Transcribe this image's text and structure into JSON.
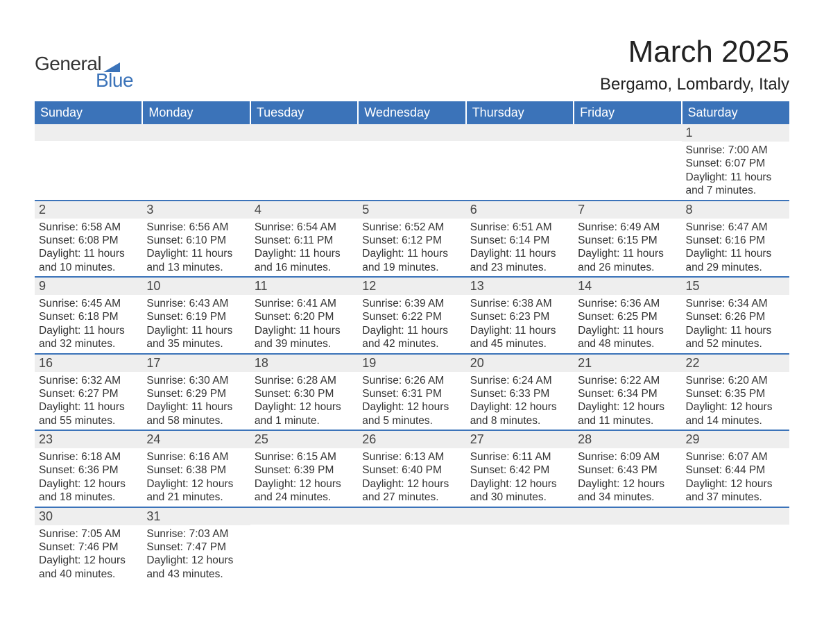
{
  "logo": {
    "text1": "General",
    "text2": "Blue",
    "tri_color": "#3b73b9"
  },
  "title": {
    "main": "March 2025",
    "sub": "Bergamo, Lombardy, Italy"
  },
  "colors": {
    "header_bg": "#3b73b9",
    "header_text": "#ffffff",
    "row_divider": "#3b73b9",
    "daynum_bg": "#eeeeee",
    "body_text": "#333333",
    "page_bg": "#ffffff"
  },
  "typography": {
    "title_fontsize": 44,
    "subtitle_fontsize": 24,
    "header_fontsize": 18,
    "daynum_fontsize": 18,
    "body_fontsize": 15.5,
    "font_family": "Arial"
  },
  "weekdays": [
    "Sunday",
    "Monday",
    "Tuesday",
    "Wednesday",
    "Thursday",
    "Friday",
    "Saturday"
  ],
  "grid": {
    "type": "calendar",
    "rows": 6,
    "cols": 7,
    "first_day_col": 6,
    "days_in_month": 31
  },
  "days": {
    "1": {
      "sunrise": "Sunrise: 7:00 AM",
      "sunset": "Sunset: 6:07 PM",
      "daylight": "Daylight: 11 hours and 7 minutes."
    },
    "2": {
      "sunrise": "Sunrise: 6:58 AM",
      "sunset": "Sunset: 6:08 PM",
      "daylight": "Daylight: 11 hours and 10 minutes."
    },
    "3": {
      "sunrise": "Sunrise: 6:56 AM",
      "sunset": "Sunset: 6:10 PM",
      "daylight": "Daylight: 11 hours and 13 minutes."
    },
    "4": {
      "sunrise": "Sunrise: 6:54 AM",
      "sunset": "Sunset: 6:11 PM",
      "daylight": "Daylight: 11 hours and 16 minutes."
    },
    "5": {
      "sunrise": "Sunrise: 6:52 AM",
      "sunset": "Sunset: 6:12 PM",
      "daylight": "Daylight: 11 hours and 19 minutes."
    },
    "6": {
      "sunrise": "Sunrise: 6:51 AM",
      "sunset": "Sunset: 6:14 PM",
      "daylight": "Daylight: 11 hours and 23 minutes."
    },
    "7": {
      "sunrise": "Sunrise: 6:49 AM",
      "sunset": "Sunset: 6:15 PM",
      "daylight": "Daylight: 11 hours and 26 minutes."
    },
    "8": {
      "sunrise": "Sunrise: 6:47 AM",
      "sunset": "Sunset: 6:16 PM",
      "daylight": "Daylight: 11 hours and 29 minutes."
    },
    "9": {
      "sunrise": "Sunrise: 6:45 AM",
      "sunset": "Sunset: 6:18 PM",
      "daylight": "Daylight: 11 hours and 32 minutes."
    },
    "10": {
      "sunrise": "Sunrise: 6:43 AM",
      "sunset": "Sunset: 6:19 PM",
      "daylight": "Daylight: 11 hours and 35 minutes."
    },
    "11": {
      "sunrise": "Sunrise: 6:41 AM",
      "sunset": "Sunset: 6:20 PM",
      "daylight": "Daylight: 11 hours and 39 minutes."
    },
    "12": {
      "sunrise": "Sunrise: 6:39 AM",
      "sunset": "Sunset: 6:22 PM",
      "daylight": "Daylight: 11 hours and 42 minutes."
    },
    "13": {
      "sunrise": "Sunrise: 6:38 AM",
      "sunset": "Sunset: 6:23 PM",
      "daylight": "Daylight: 11 hours and 45 minutes."
    },
    "14": {
      "sunrise": "Sunrise: 6:36 AM",
      "sunset": "Sunset: 6:25 PM",
      "daylight": "Daylight: 11 hours and 48 minutes."
    },
    "15": {
      "sunrise": "Sunrise: 6:34 AM",
      "sunset": "Sunset: 6:26 PM",
      "daylight": "Daylight: 11 hours and 52 minutes."
    },
    "16": {
      "sunrise": "Sunrise: 6:32 AM",
      "sunset": "Sunset: 6:27 PM",
      "daylight": "Daylight: 11 hours and 55 minutes."
    },
    "17": {
      "sunrise": "Sunrise: 6:30 AM",
      "sunset": "Sunset: 6:29 PM",
      "daylight": "Daylight: 11 hours and 58 minutes."
    },
    "18": {
      "sunrise": "Sunrise: 6:28 AM",
      "sunset": "Sunset: 6:30 PM",
      "daylight": "Daylight: 12 hours and 1 minute."
    },
    "19": {
      "sunrise": "Sunrise: 6:26 AM",
      "sunset": "Sunset: 6:31 PM",
      "daylight": "Daylight: 12 hours and 5 minutes."
    },
    "20": {
      "sunrise": "Sunrise: 6:24 AM",
      "sunset": "Sunset: 6:33 PM",
      "daylight": "Daylight: 12 hours and 8 minutes."
    },
    "21": {
      "sunrise": "Sunrise: 6:22 AM",
      "sunset": "Sunset: 6:34 PM",
      "daylight": "Daylight: 12 hours and 11 minutes."
    },
    "22": {
      "sunrise": "Sunrise: 6:20 AM",
      "sunset": "Sunset: 6:35 PM",
      "daylight": "Daylight: 12 hours and 14 minutes."
    },
    "23": {
      "sunrise": "Sunrise: 6:18 AM",
      "sunset": "Sunset: 6:36 PM",
      "daylight": "Daylight: 12 hours and 18 minutes."
    },
    "24": {
      "sunrise": "Sunrise: 6:16 AM",
      "sunset": "Sunset: 6:38 PM",
      "daylight": "Daylight: 12 hours and 21 minutes."
    },
    "25": {
      "sunrise": "Sunrise: 6:15 AM",
      "sunset": "Sunset: 6:39 PM",
      "daylight": "Daylight: 12 hours and 24 minutes."
    },
    "26": {
      "sunrise": "Sunrise: 6:13 AM",
      "sunset": "Sunset: 6:40 PM",
      "daylight": "Daylight: 12 hours and 27 minutes."
    },
    "27": {
      "sunrise": "Sunrise: 6:11 AM",
      "sunset": "Sunset: 6:42 PM",
      "daylight": "Daylight: 12 hours and 30 minutes."
    },
    "28": {
      "sunrise": "Sunrise: 6:09 AM",
      "sunset": "Sunset: 6:43 PM",
      "daylight": "Daylight: 12 hours and 34 minutes."
    },
    "29": {
      "sunrise": "Sunrise: 6:07 AM",
      "sunset": "Sunset: 6:44 PM",
      "daylight": "Daylight: 12 hours and 37 minutes."
    },
    "30": {
      "sunrise": "Sunrise: 7:05 AM",
      "sunset": "Sunset: 7:46 PM",
      "daylight": "Daylight: 12 hours and 40 minutes."
    },
    "31": {
      "sunrise": "Sunrise: 7:03 AM",
      "sunset": "Sunset: 7:47 PM",
      "daylight": "Daylight: 12 hours and 43 minutes."
    }
  }
}
